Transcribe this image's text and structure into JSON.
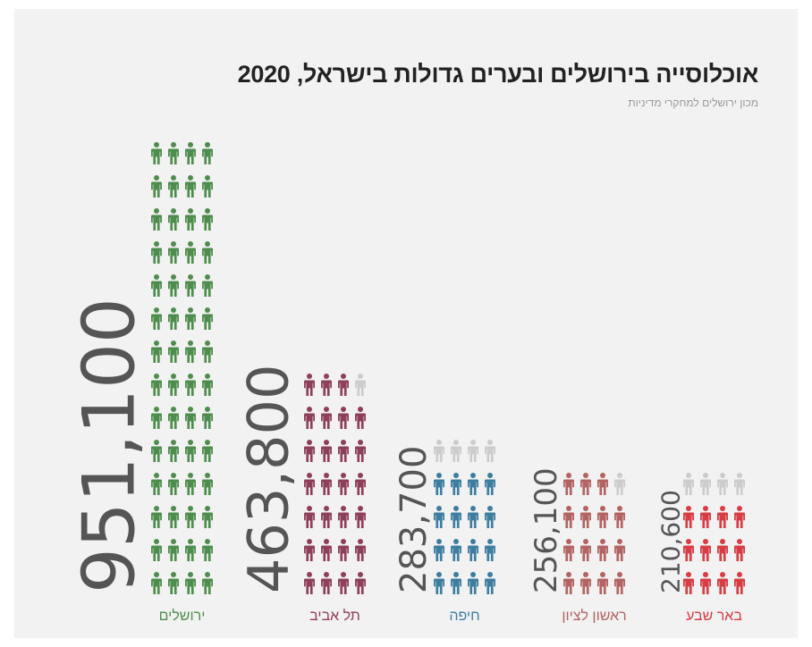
{
  "title": "אוכלוסייה בירושלים ובערים גדולות בישראל, 2020",
  "subtitle": "מכון ירושלים למחקרי מדיניות",
  "colors": {
    "background": "#f2f2f2",
    "value_text": "#555555",
    "partial_icon": "#cccccc"
  },
  "icon": "person-icon",
  "chart_data": {
    "type": "bar",
    "title": "אוכלוסייה בירושלים ובערים גדולות בישראל, 2020",
    "subtitle": "מכון ירושלים למחקרי מדיניות",
    "categories": [
      "ירושלים",
      "תל אביב",
      "חיפה",
      "ראשון לציון",
      "באר שבע"
    ],
    "values": [
      951100,
      463800,
      283700,
      256100,
      210600
    ],
    "value_labels": [
      "951,100",
      "463,800",
      "283,700",
      "256,100",
      "210,600"
    ],
    "colors": [
      "#4e8d4e",
      "#8e3f5a",
      "#3d7ea0",
      "#b46363",
      "#d83c44"
    ],
    "icons_per_row": 4
  }
}
